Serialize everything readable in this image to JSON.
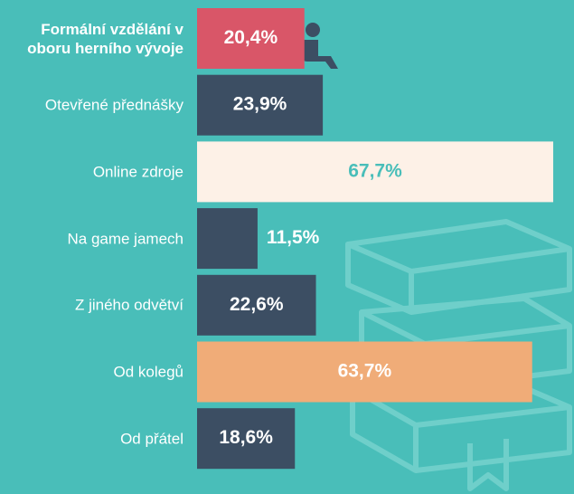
{
  "chart_data": {
    "type": "bar",
    "orientation": "horizontal",
    "categories": [
      "Formální vzdělání v oboru herního vývoje",
      "Otevřené přednášky",
      "Online zdroje",
      "Na game jamech",
      "Z jiného odvětví",
      "Od kolegů",
      "Od přátel"
    ],
    "values": [
      20.4,
      23.9,
      67.7,
      11.5,
      22.6,
      63.7,
      18.6
    ],
    "value_labels": [
      "20,4%",
      "23,9%",
      "67,7%",
      "11,5%",
      "22,6%",
      "63,7%",
      "18,6%"
    ],
    "colors": [
      "#d95668",
      "#3c4e63",
      "#fdf1e7",
      "#3c4e63",
      "#3c4e63",
      "#f0ac78",
      "#3c4e63"
    ]
  }
}
